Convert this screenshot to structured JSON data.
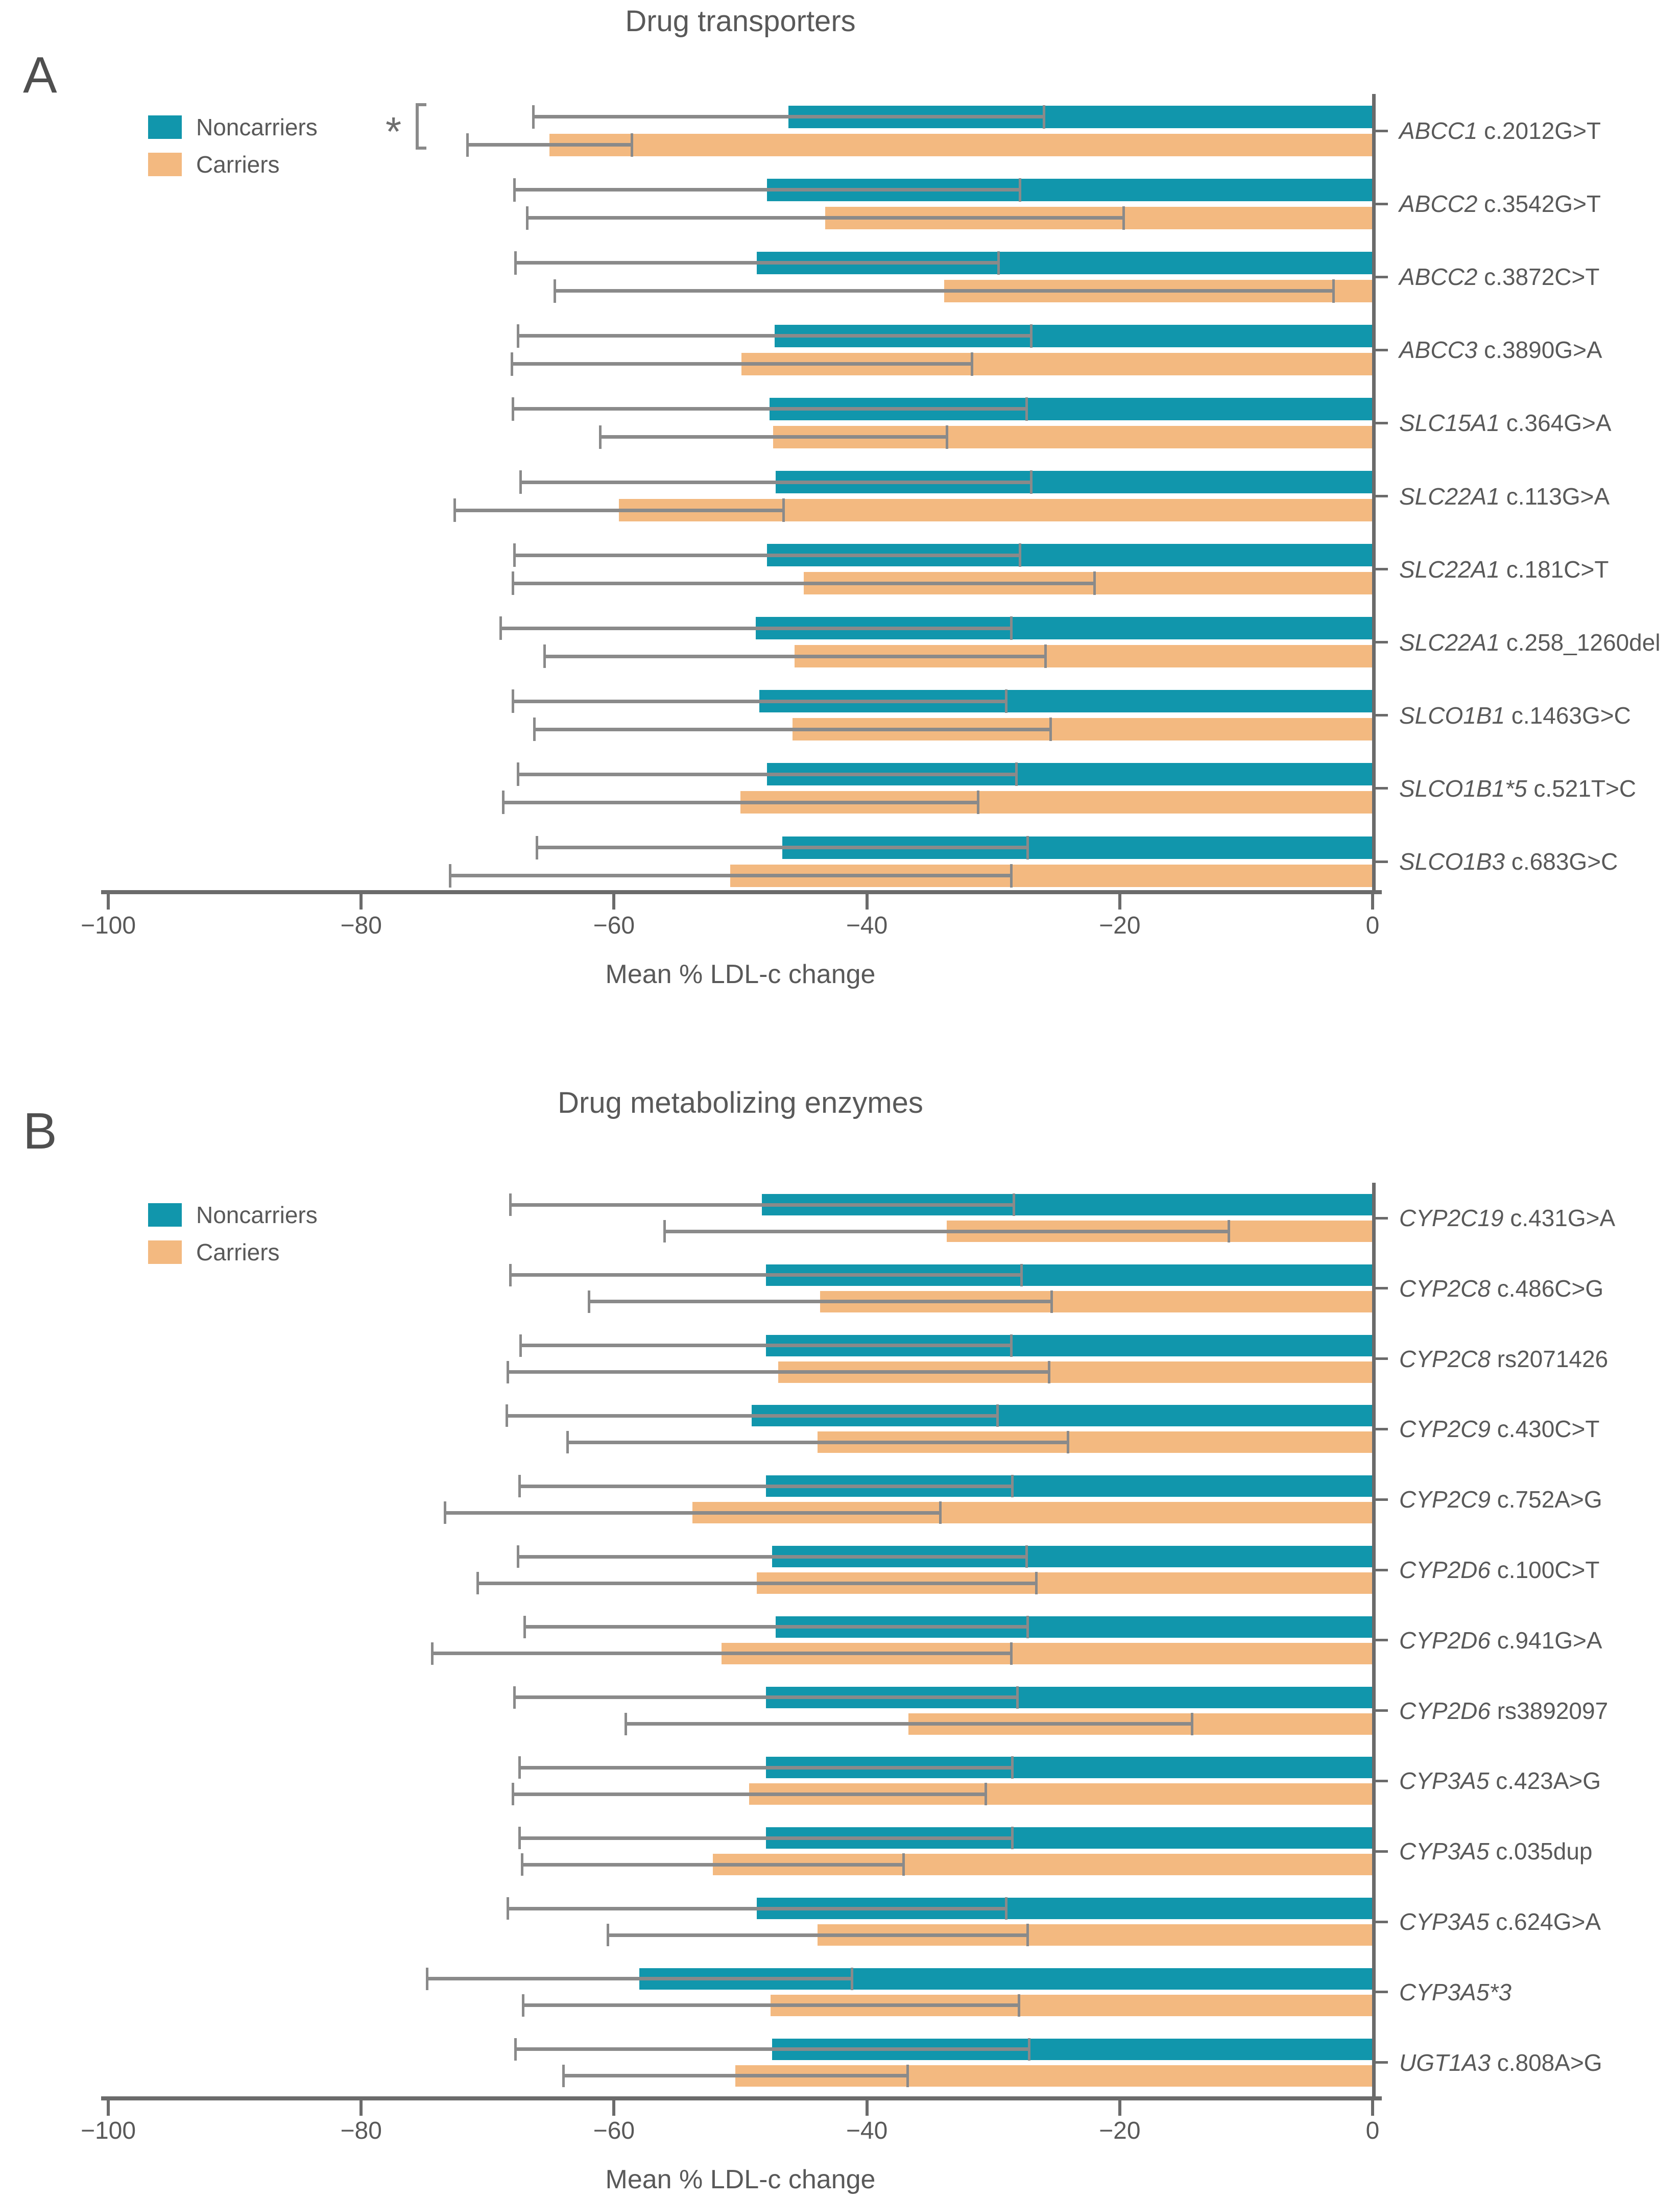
{
  "figure": {
    "background": "#ffffff",
    "text_color": "#595959",
    "axis_color": "#6b6b6b",
    "errorbar_color": "#8a8a8a",
    "noncarrier_color": "#1196ac",
    "carrier_color": "#f3b980"
  },
  "chart_data": [
    {
      "type": "bar",
      "orientation": "horizontal",
      "panel_letter": "A",
      "title": "Drug transporters",
      "xlabel": "Mean % LDL-c change",
      "xlim": [
        -100,
        0
      ],
      "x_tick_values": [
        -100,
        -80,
        -60,
        -40,
        -20,
        0
      ],
      "x_tick_labels": [
        "−100",
        "−80",
        "−60",
        "−40",
        "−20",
        "0"
      ],
      "legend": [
        {
          "label": "Noncarriers",
          "color_key": "noncarrier_color"
        },
        {
          "label": "Carriers",
          "color_key": "carrier_color"
        }
      ],
      "significance_marker": {
        "label": "*",
        "row_index": 0
      },
      "series_names": [
        "Noncarriers",
        "Carriers"
      ],
      "rows": [
        {
          "gene": "ABCC1",
          "variant": "c.2012G>T",
          "noncarriers": {
            "mean": -46.2,
            "sd": 20.2
          },
          "carriers": {
            "mean": -65.1,
            "sd": 6.5
          },
          "significant": true
        },
        {
          "gene": "ABCC2",
          "variant": "c.3542G>T",
          "noncarriers": {
            "mean": -47.9,
            "sd": 20.0
          },
          "carriers": {
            "mean": -43.3,
            "sd": 23.6
          },
          "significant": false
        },
        {
          "gene": "ABCC2",
          "variant": "c.3872C>T",
          "noncarriers": {
            "mean": -48.7,
            "sd": 19.1
          },
          "carriers": {
            "mean": -33.9,
            "sd": 30.8
          },
          "significant": false
        },
        {
          "gene": "ABCC3",
          "variant": "c.3890G>A",
          "noncarriers": {
            "mean": -47.3,
            "sd": 20.3
          },
          "carriers": {
            "mean": -49.9,
            "sd": 18.2
          },
          "significant": false
        },
        {
          "gene": "SLC15A1",
          "variant": "c.364G>A",
          "noncarriers": {
            "mean": -47.7,
            "sd": 20.3
          },
          "carriers": {
            "mean": -47.4,
            "sd": 13.7
          },
          "significant": false
        },
        {
          "gene": "SLC22A1",
          "variant": "c.113G>A",
          "noncarriers": {
            "mean": -47.2,
            "sd": 20.2
          },
          "carriers": {
            "mean": -59.6,
            "sd": 13.0
          },
          "significant": false
        },
        {
          "gene": "SLC22A1",
          "variant": "c.181C>T",
          "noncarriers": {
            "mean": -47.9,
            "sd": 20.0
          },
          "carriers": {
            "mean": -45.0,
            "sd": 23.0
          },
          "significant": false
        },
        {
          "gene": "SLC22A1",
          "variant": "c.258_1260del",
          "noncarriers": {
            "mean": -48.8,
            "sd": 20.2
          },
          "carriers": {
            "mean": -45.7,
            "sd": 19.8
          },
          "significant": false
        },
        {
          "gene": "SLCO1B1",
          "variant": "c.1463G>C",
          "noncarriers": {
            "mean": -48.5,
            "sd": 19.5
          },
          "carriers": {
            "mean": -45.9,
            "sd": 20.4
          },
          "significant": false
        },
        {
          "gene": "SLCO1B1*5",
          "variant": "c.521T>C",
          "noncarriers": {
            "mean": -47.9,
            "sd": 19.7
          },
          "carriers": {
            "mean": -50.0,
            "sd": 18.8
          },
          "significant": false
        },
        {
          "gene": "SLCO1B3",
          "variant": "c.683G>C",
          "noncarriers": {
            "mean": -46.7,
            "sd": 19.4
          },
          "carriers": {
            "mean": -50.8,
            "sd": 22.2
          },
          "significant": false
        }
      ]
    },
    {
      "type": "bar",
      "orientation": "horizontal",
      "panel_letter": "B",
      "title": "Drug metabolizing enzymes",
      "xlabel": "Mean % LDL-c change",
      "xlim": [
        -100,
        0
      ],
      "x_tick_values": [
        -100,
        -80,
        -60,
        -40,
        -20,
        0
      ],
      "x_tick_labels": [
        "−100",
        "−80",
        "−60",
        "−40",
        "−20",
        "0"
      ],
      "legend": [
        {
          "label": "Noncarriers",
          "color_key": "noncarrier_color"
        },
        {
          "label": "Carriers",
          "color_key": "carrier_color"
        }
      ],
      "significance_marker": null,
      "series_names": [
        "Noncarriers",
        "Carriers"
      ],
      "rows": [
        {
          "gene": "CYP2C19",
          "variant": "c.431G>A",
          "noncarriers": {
            "mean": -48.3,
            "sd": 19.9
          },
          "carriers": {
            "mean": -33.7,
            "sd": 22.3
          },
          "significant": false
        },
        {
          "gene": "CYP2C8",
          "variant": "c.486C>G",
          "noncarriers": {
            "mean": -48.0,
            "sd": 20.2
          },
          "carriers": {
            "mean": -43.7,
            "sd": 18.3
          },
          "significant": false
        },
        {
          "gene": "CYP2C8",
          "variant": "rs2071426",
          "noncarriers": {
            "mean": -48.0,
            "sd": 19.4
          },
          "carriers": {
            "mean": -47.0,
            "sd": 21.4
          },
          "significant": false
        },
        {
          "gene": "CYP2C9",
          "variant": "c.430C>T",
          "noncarriers": {
            "mean": -49.1,
            "sd": 19.4
          },
          "carriers": {
            "mean": -43.9,
            "sd": 19.8
          },
          "significant": false
        },
        {
          "gene": "CYP2C9",
          "variant": "c.752A>G",
          "noncarriers": {
            "mean": -48.0,
            "sd": 19.5
          },
          "carriers": {
            "mean": -53.8,
            "sd": 19.6
          },
          "significant": false
        },
        {
          "gene": "CYP2D6",
          "variant": "c.100C>T",
          "noncarriers": {
            "mean": -47.5,
            "sd": 20.1
          },
          "carriers": {
            "mean": -48.7,
            "sd": 22.1
          },
          "significant": false
        },
        {
          "gene": "CYP2D6",
          "variant": "c.941G>A",
          "noncarriers": {
            "mean": -47.2,
            "sd": 19.9
          },
          "carriers": {
            "mean": -51.5,
            "sd": 22.9
          },
          "significant": false
        },
        {
          "gene": "CYP2D6",
          "variant": "rs3892097",
          "noncarriers": {
            "mean": -48.0,
            "sd": 19.9
          },
          "carriers": {
            "mean": -36.7,
            "sd": 22.4
          },
          "significant": false
        },
        {
          "gene": "CYP3A5",
          "variant": "c.423A>G",
          "noncarriers": {
            "mean": -48.0,
            "sd": 19.5
          },
          "carriers": {
            "mean": -49.3,
            "sd": 18.7
          },
          "significant": false
        },
        {
          "gene": "CYP3A5",
          "variant": "c.035dup",
          "noncarriers": {
            "mean": -48.0,
            "sd": 19.5
          },
          "carriers": {
            "mean": -52.2,
            "sd": 15.1
          },
          "significant": false
        },
        {
          "gene": "CYP3A5",
          "variant": "c.624G>A",
          "noncarriers": {
            "mean": -48.7,
            "sd": 19.7
          },
          "carriers": {
            "mean": -43.9,
            "sd": 16.6
          },
          "significant": false
        },
        {
          "gene": "CYP3A5*3",
          "variant": "",
          "noncarriers": {
            "mean": -58.0,
            "sd": 16.8
          },
          "carriers": {
            "mean": -47.6,
            "sd": 19.6
          },
          "significant": false
        },
        {
          "gene": "UGT1A3",
          "variant": "c.808A>G",
          "noncarriers": {
            "mean": -47.5,
            "sd": 20.3
          },
          "carriers": {
            "mean": -50.4,
            "sd": 13.6
          },
          "significant": false
        }
      ]
    }
  ]
}
